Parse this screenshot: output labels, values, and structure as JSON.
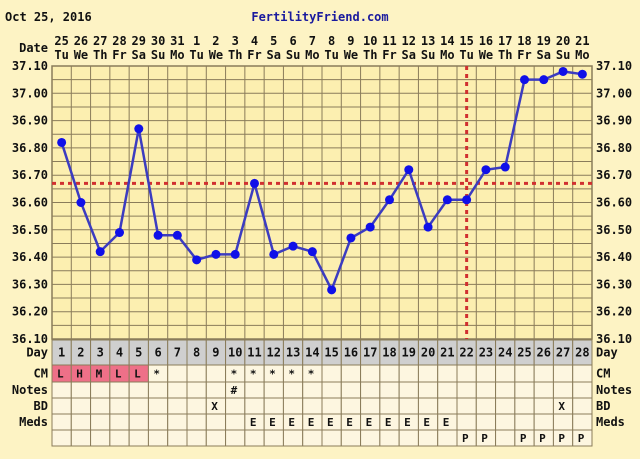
{
  "header": {
    "date": "Oct 25, 2016",
    "brand": "FertilityFriend.com"
  },
  "labels": {
    "date": "Date",
    "day": "Day",
    "cm": "CM",
    "notes": "Notes",
    "bd": "BD",
    "meds": "Meds"
  },
  "colors": {
    "background": "#fdf3c4",
    "plot": "#fcefb0",
    "grid": "#8a7c5a",
    "line": "#3c3cc0",
    "point": "#1010e8",
    "coverline": "#d03030",
    "cm_pink": "#ee7088",
    "day_row": "#cfcfcf",
    "cell": "#fdf6e0"
  },
  "chart_data": {
    "type": "line",
    "title": "",
    "x_dates": [
      "25",
      "26",
      "27",
      "28",
      "29",
      "30",
      "31",
      "1",
      "2",
      "3",
      "4",
      "5",
      "6",
      "7",
      "8",
      "9",
      "10",
      "11",
      "12",
      "13",
      "14",
      "15",
      "16",
      "17",
      "18",
      "19",
      "20",
      "21"
    ],
    "x_weekdays": [
      "Tu",
      "We",
      "Th",
      "Fr",
      "Sa",
      "Su",
      "Mo",
      "Tu",
      "We",
      "Th",
      "Fr",
      "Sa",
      "Su",
      "Mo",
      "Tu",
      "We",
      "Th",
      "Fr",
      "Sa",
      "Su",
      "Mo",
      "Tu",
      "We",
      "Th",
      "Fr",
      "Sa",
      "Su",
      "Mo"
    ],
    "cycle_days": [
      "1",
      "2",
      "3",
      "4",
      "5",
      "6",
      "7",
      "8",
      "9",
      "10",
      "11",
      "12",
      "13",
      "14",
      "15",
      "16",
      "17",
      "18",
      "19",
      "20",
      "21",
      "22",
      "23",
      "24",
      "25",
      "26",
      "27",
      "28"
    ],
    "series": [
      {
        "name": "Temperature",
        "values": [
          36.82,
          36.6,
          36.42,
          36.49,
          36.87,
          36.48,
          36.48,
          36.39,
          36.41,
          36.41,
          36.67,
          36.41,
          36.44,
          36.42,
          36.28,
          36.47,
          36.51,
          36.61,
          36.72,
          36.51,
          36.61,
          36.61,
          36.72,
          36.73,
          37.05,
          37.05,
          37.08,
          37.07
        ]
      }
    ],
    "ylim": [
      36.1,
      37.1
    ],
    "y_ticks": [
      "36.10",
      "36.20",
      "36.30",
      "36.40",
      "36.50",
      "36.60",
      "36.70",
      "36.80",
      "36.90",
      "37.00",
      "37.10"
    ],
    "coverline": 36.67,
    "ovulation_day": 22,
    "grid": true
  },
  "rows": {
    "cm": [
      "L",
      "H",
      "M",
      "L",
      "L",
      "*",
      "",
      "",
      "",
      "*",
      "*",
      "*",
      "*",
      "*",
      "",
      "",
      "",
      "",
      "",
      "",
      "",
      "",
      "",
      "",
      "",
      "",
      "",
      ""
    ],
    "cm_highlight": [
      1,
      1,
      1,
      1,
      1,
      0,
      0,
      0,
      0,
      0,
      0,
      0,
      0,
      0,
      0,
      0,
      0,
      0,
      0,
      0,
      0,
      0,
      0,
      0,
      0,
      0,
      0,
      0
    ],
    "notes": [
      "",
      "",
      "",
      "",
      "",
      "",
      "",
      "",
      "",
      "#",
      "",
      "",
      "",
      "",
      "",
      "",
      "",
      "",
      "",
      "",
      "",
      "",
      "",
      "",
      "",
      "",
      "",
      ""
    ],
    "bd": [
      "",
      "",
      "",
      "",
      "",
      "",
      "",
      "",
      "X",
      "",
      "",
      "",
      "",
      "",
      "",
      "",
      "",
      "",
      "",
      "",
      "",
      "",
      "",
      "",
      "",
      "",
      "X",
      ""
    ],
    "meds": [
      "",
      "",
      "",
      "",
      "",
      "",
      "",
      "",
      "",
      "",
      "E",
      "E",
      "E",
      "E",
      "E",
      "E",
      "E",
      "E",
      "E",
      "E",
      "E",
      "",
      "",
      "",
      "",
      "",
      "",
      ""
    ],
    "extra": [
      "",
      "",
      "",
      "",
      "",
      "",
      "",
      "",
      "",
      "",
      "",
      "",
      "",
      "",
      "",
      "",
      "",
      "",
      "",
      "",
      "",
      "P",
      "P",
      "",
      "P",
      "P",
      "P",
      "P"
    ]
  }
}
